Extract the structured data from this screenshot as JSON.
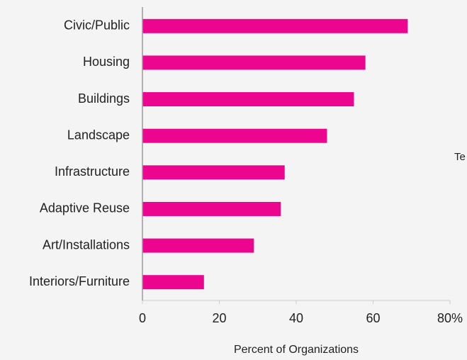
{
  "chart_data": {
    "type": "bar",
    "orientation": "horizontal",
    "categories": [
      "Civic/Public",
      "Housing",
      "Buildings",
      "Landscape",
      "Infrastructure",
      "Adaptive Reuse",
      "Art/Installations",
      "Interiors/Furniture"
    ],
    "values": [
      69,
      58,
      55,
      48,
      37,
      36,
      29,
      16
    ],
    "color": "#ec058e",
    "xlim": [
      0,
      80
    ],
    "xticks": [
      0,
      20,
      40,
      60,
      {
        "value": 80,
        "label": "80%"
      }
    ],
    "xlabel": "Percent of Organizations",
    "annotation": "Te"
  }
}
